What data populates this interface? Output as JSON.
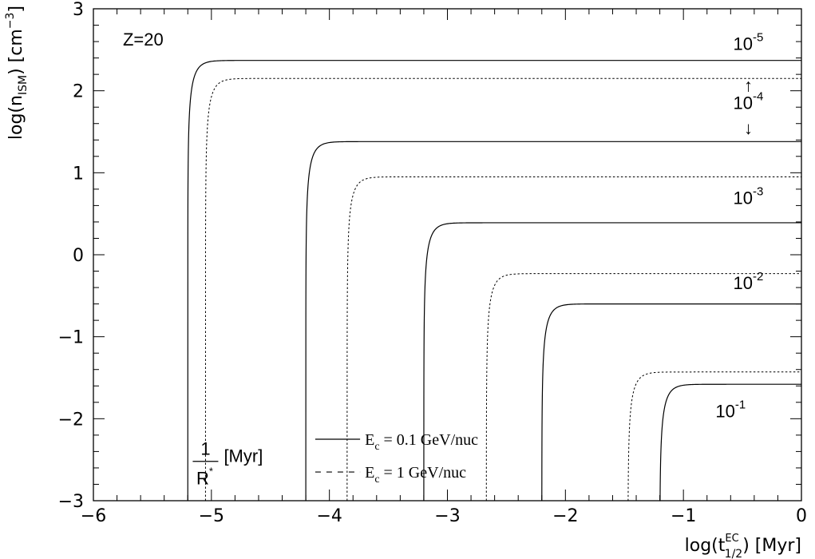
{
  "chart_data": {
    "type": "line",
    "title": "",
    "xlabel": {
      "base": "log(t",
      "sup": "EC",
      "sub": "1/2",
      "tail": ") [Myr]"
    },
    "ylabel": {
      "base": "log(n",
      "sub": "ISM",
      "mid": ") [cm",
      "sup": "−3",
      "tail": "]"
    },
    "xlim": [
      -6,
      0
    ],
    "ylim": [
      -3,
      3
    ],
    "xticks": [
      -6,
      -5,
      -4,
      -3,
      -2,
      -1,
      0
    ],
    "xtick_labels": [
      "−6",
      "−5",
      "−4",
      "−3",
      "−2",
      "−1",
      "0"
    ],
    "yticks": [
      -3,
      -2,
      -1,
      0,
      1,
      2,
      3
    ],
    "ytick_labels": [
      "−3",
      "−2",
      "−1",
      "0",
      "1",
      "2",
      "3"
    ],
    "grid": false,
    "annotations": {
      "z_label": "Z=20",
      "rate_prefix": "10",
      "rate_labels": [
        {
          "exp": "-5",
          "x": -0.45,
          "y": 2.5
        },
        {
          "exp": "-4",
          "x": -0.45,
          "y": 1.78
        },
        {
          "exp": "-3",
          "x": -0.45,
          "y": 0.62
        },
        {
          "exp": "-2",
          "x": -0.45,
          "y": -0.42
        },
        {
          "exp": "-1",
          "x": -0.6,
          "y": -1.98
        }
      ],
      "arrow_up": "↑",
      "arrow_down": "↓",
      "inv_r_num": "1",
      "inv_r_den": "R",
      "inv_r_star": "*",
      "inv_r_unit": "[Myr]"
    },
    "legend": {
      "position": "bottom-center",
      "entries": [
        {
          "style": "solid",
          "label": "E",
          "sub": "c",
          "suffix": " = 0.1 GeV/nuc"
        },
        {
          "style": "dashed",
          "label": "E",
          "sub": "c",
          "suffix": " = 1 GeV/nuc"
        }
      ]
    },
    "series": [
      {
        "style": "solid",
        "x0": -5.2,
        "plateau": 2.37
      },
      {
        "style": "dashed",
        "x0": -5.05,
        "plateau": 2.15
      },
      {
        "style": "solid",
        "x0": -4.2,
        "plateau": 1.38
      },
      {
        "style": "dashed",
        "x0": -3.85,
        "plateau": 0.95
      },
      {
        "style": "solid",
        "x0": -3.2,
        "plateau": 0.39
      },
      {
        "style": "dashed",
        "x0": -2.67,
        "plateau": -0.23
      },
      {
        "style": "solid",
        "x0": -2.2,
        "plateau": -0.6
      },
      {
        "style": "dashed",
        "x0": -1.47,
        "plateau": -1.43
      },
      {
        "style": "solid",
        "x0": -1.2,
        "plateau": -1.58
      }
    ]
  }
}
